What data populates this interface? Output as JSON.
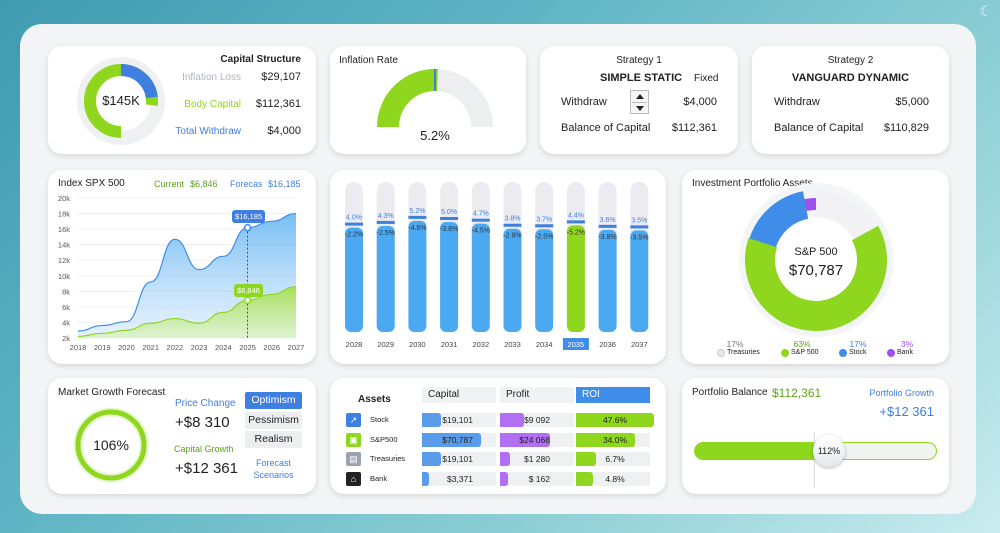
{
  "colors": {
    "green": "#8fd61f",
    "blue": "#3f8de8",
    "lightblue": "#4aa9f0",
    "purple": "#a24ff0",
    "grey": "#ececf0"
  },
  "capital": {
    "title": "Capital Structure",
    "center": "$145K",
    "rows": [
      {
        "label": "Inflation Loss",
        "value": "$29,107",
        "color": "#aeb4bb"
      },
      {
        "label": "Body Capital",
        "value": "$112,361",
        "color": "#8fd61f"
      },
      {
        "label": "Total Withdraw",
        "value": "$4,000",
        "color": "#3f7fe0"
      }
    ]
  },
  "inflation": {
    "title": "Inflation Rate",
    "value": "5.2%",
    "fraction": 0.052
  },
  "strategy1": {
    "title": "Strategy 1",
    "name": "SIMPLE STATIC",
    "mode": "Fixed",
    "withdraw_label": "Withdraw",
    "withdraw": "$4,000",
    "balance_label": "Balance of Capital",
    "balance": "$112,361"
  },
  "strategy2": {
    "title": "Strategy 2",
    "name": "VANGUARD DYNAMIC",
    "withdraw_label": "Withdraw",
    "withdraw": "$5,000",
    "balance_label": "Balance of Capital",
    "balance": "$110,829"
  },
  "spx": {
    "title": "Index SPX 500",
    "current_label": "Current",
    "current": "$6,846",
    "forecast_label": "Forecas",
    "forecast": "$16,185",
    "callout_high": "$16,185",
    "callout_low": "$6,846"
  },
  "bars": {
    "years": [
      "2028",
      "2029",
      "2030",
      "2031",
      "2032",
      "2033",
      "2034",
      "2035",
      "2036",
      "2037"
    ],
    "top": [
      "4.0%",
      "4.3%",
      "5.2%",
      "5.0%",
      "4.7%",
      "3.8%",
      "3.7%",
      "4.4%",
      "3.6%",
      "3.5%"
    ],
    "bottom": [
      "-2.2%",
      "-2.5%",
      "-4.6%",
      "-3.8%",
      "-4.5%",
      "-2.9%",
      "-2.5%",
      "-5.2%",
      "-3.8%",
      "-3.5%"
    ],
    "highlight": 7
  },
  "portfolio": {
    "title": "Investment Portfolio Assets",
    "center_label": "S&P 500",
    "center_value": "$70,787",
    "legend": [
      {
        "pct": "17%",
        "name": "Treasuries",
        "color": "#e8e8ea",
        "pctColor": "#777"
      },
      {
        "pct": "63%",
        "name": "S&P 500",
        "color": "#8fd61f",
        "pctColor": "#5da31a"
      },
      {
        "pct": "17%",
        "name": "Stock",
        "color": "#3f8de8",
        "pctColor": "#3f7fe0"
      },
      {
        "pct": "3%",
        "name": "Bank",
        "color": "#a24ff0",
        "pctColor": "#a24ff0"
      }
    ]
  },
  "growth": {
    "title": "Market Growth Forecast",
    "value": "106%",
    "price_label": "Price Change",
    "price": "+$8 310",
    "capital_label": "Capital Growth",
    "capital": "+$12 361",
    "options": [
      "Optimism",
      "Pessimism",
      "Realism"
    ],
    "scenarios_label": "Forecast Scenarios"
  },
  "assets": {
    "headers": [
      "Assets",
      "Capital",
      "Profit",
      "ROI"
    ],
    "rows": [
      {
        "name": "Stock",
        "capital": "$19,101",
        "profit": "$9 092",
        "roi": "47.6%"
      },
      {
        "name": "S&P500",
        "capital": "$70,787",
        "profit": "$24 068",
        "roi": "34.0%"
      },
      {
        "name": "Treasuries",
        "capital": "$19,101",
        "profit": "$1 280",
        "roi": "6.7%"
      },
      {
        "name": "Bank",
        "capital": "$3,371",
        "profit": "$ 162",
        "roi": "4.8%"
      }
    ]
  },
  "balance": {
    "title": "Portfolio Balance",
    "value": "$112,361",
    "growth_label": "Portfolio Growth",
    "growth": "+$12 361",
    "slider": "112%"
  },
  "chart_data": [
    {
      "type": "area",
      "title": "Index SPX 500",
      "x": [
        2018,
        2019,
        2020,
        2021,
        2022,
        2023,
        2024,
        2025,
        2026,
        2027
      ],
      "ylim": [
        2000,
        20000
      ],
      "yticks": [
        "2k",
        "4k",
        "6k",
        "8k",
        "10k",
        "12k",
        "14k",
        "16k",
        "18k",
        "20k"
      ],
      "series": [
        {
          "name": "Forecas",
          "values": [
            2900,
            3600,
            4100,
            9200,
            14700,
            10800,
            12500,
            16185,
            17000,
            18000
          ]
        },
        {
          "name": "Current",
          "values": [
            2200,
            2600,
            3000,
            3900,
            4500,
            3900,
            5300,
            6846,
            7600,
            8600
          ]
        }
      ]
    },
    {
      "type": "bar",
      "categories": [
        "2028",
        "2029",
        "2030",
        "2031",
        "2032",
        "2033",
        "2034",
        "2035",
        "2036",
        "2037"
      ],
      "series": [
        {
          "values": [
            4.0,
            4.3,
            5.2,
            5.0,
            4.7,
            3.8,
            3.7,
            4.4,
            3.6,
            3.5
          ]
        },
        {
          "values": [
            -2.2,
            -2.5,
            -4.6,
            -3.8,
            -4.5,
            -2.9,
            -2.5,
            -5.2,
            -3.8,
            -3.5
          ]
        }
      ]
    },
    {
      "type": "pie",
      "categories": [
        "Treasuries",
        "S&P 500",
        "Stock",
        "Bank"
      ],
      "values": [
        17,
        63,
        17,
        3
      ]
    }
  ]
}
